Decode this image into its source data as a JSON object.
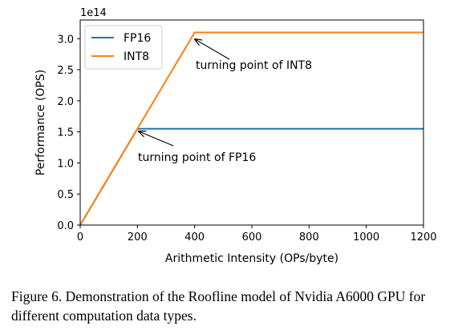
{
  "chart_data": {
    "type": "line",
    "xlabel": "Arithmetic Intensity (OPs/byte)",
    "ylabel": "Performance (OPS)",
    "y_multiplier_label": "1e14",
    "xlim": [
      0,
      1200
    ],
    "ylim": [
      0,
      3.3
    ],
    "xticks": [
      0,
      200,
      400,
      600,
      800,
      1000,
      1200
    ],
    "xtick_labels": [
      "0",
      "200",
      "400",
      "600",
      "800",
      "1000",
      "1200"
    ],
    "yticks": [
      0.0,
      0.5,
      1.0,
      1.5,
      2.0,
      2.5,
      3.0
    ],
    "ytick_labels": [
      "0.0",
      "0.5",
      "1.0",
      "1.5",
      "2.0",
      "2.5",
      "3.0"
    ],
    "legend_position": "top-left",
    "grid": false,
    "series": [
      {
        "name": "FP16",
        "color": "#1f77b4",
        "x": [
          0,
          200,
          1200
        ],
        "y": [
          0,
          1.55,
          1.55
        ]
      },
      {
        "name": "INT8",
        "color": "#ff7f0e",
        "x": [
          0,
          400,
          1200
        ],
        "y": [
          0,
          3.1,
          3.1
        ]
      }
    ],
    "annotations": [
      {
        "text": "turning point of INT8",
        "point": [
          400,
          3.1
        ]
      },
      {
        "text": "turning point of FP16",
        "point": [
          200,
          1.55
        ]
      }
    ]
  },
  "caption": "Figure 6. Demonstration of the Roofline model of Nvidia A6000 GPU for different computation data types."
}
